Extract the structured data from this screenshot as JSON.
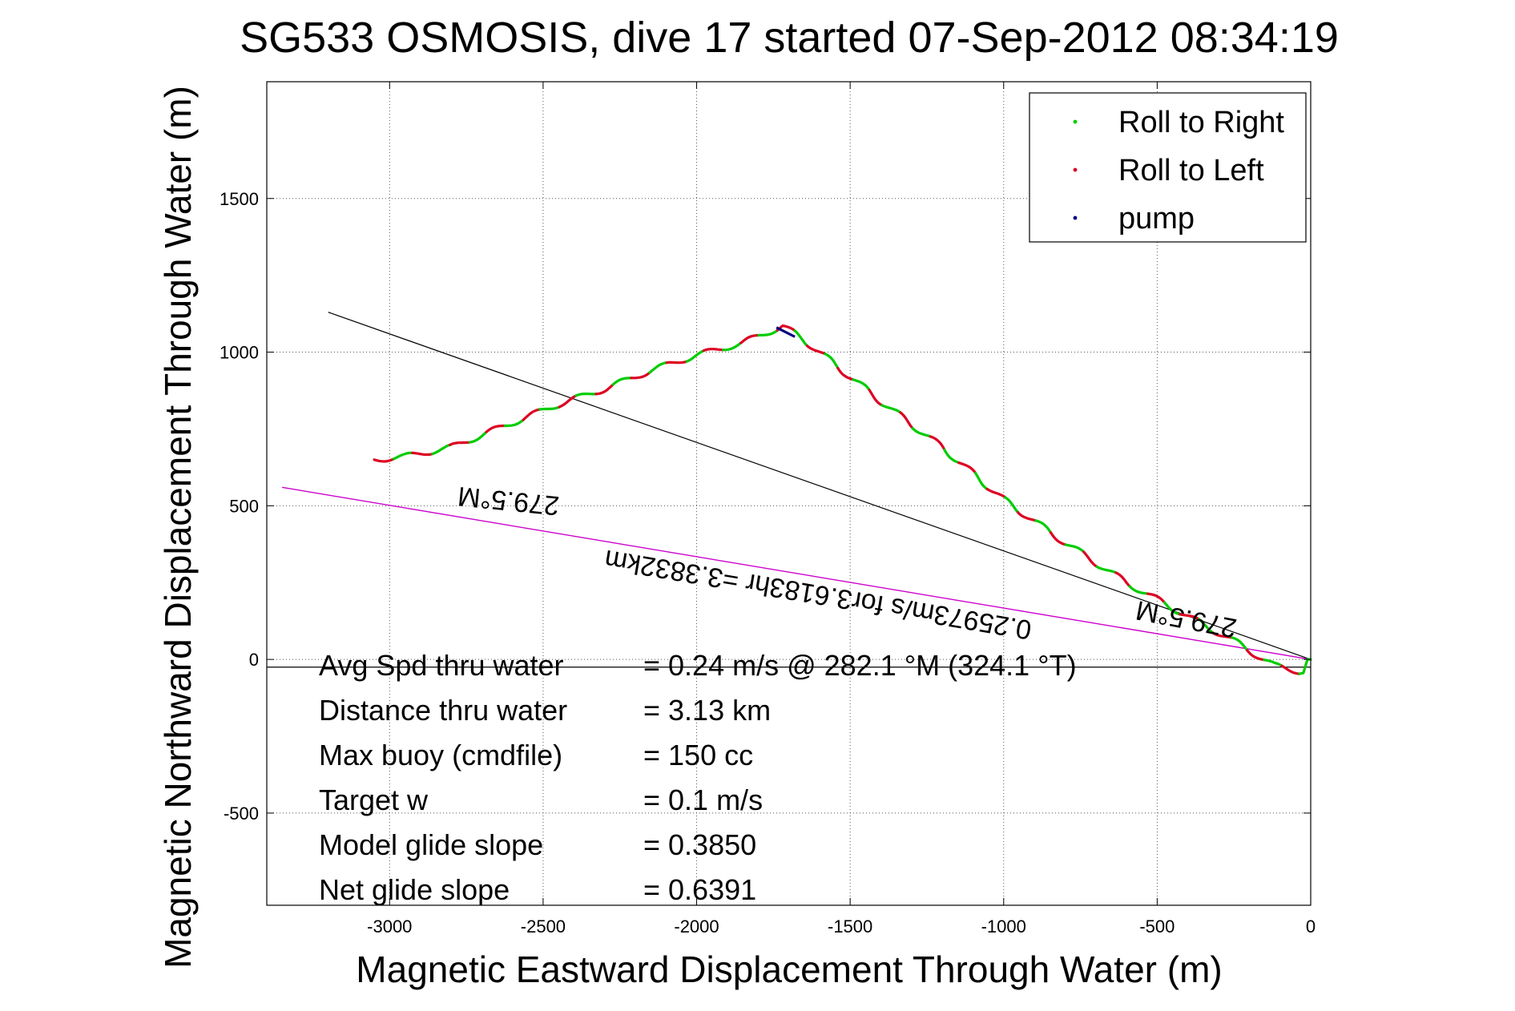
{
  "chart_data": {
    "type": "line",
    "title": "SG533 OSMOSIS, dive 17 started 07-Sep-2012 08:34:19",
    "xlabel": "Magnetic Eastward Displacement Through Water (m)",
    "ylabel": "Magnetic Northward Displacement Through Water (m)",
    "xlim": [
      -3400,
      0
    ],
    "ylim": [
      -800,
      1880
    ],
    "xticks": [
      -3000,
      -2500,
      -2000,
      -1500,
      -1000,
      -500,
      0
    ],
    "xtick_labels": [
      "-3000",
      "-2500",
      "-2000",
      "-1500",
      "-1000",
      "-500",
      "0"
    ],
    "yticks": [
      -500,
      0,
      500,
      1000,
      1500
    ],
    "ytick_labels": [
      "-500",
      "0",
      "500",
      "1000",
      "1500"
    ],
    "grid": true,
    "legend_position": "top-right",
    "legend": [
      {
        "label": "Roll to Right",
        "color": "#00cc00"
      },
      {
        "label": "Roll to Left",
        "color": "#dd0022"
      },
      {
        "label": "pump",
        "color": "#000080"
      }
    ],
    "track": {
      "name": "glider track",
      "x": [
        -3050,
        -2950,
        -2800,
        -2600,
        -2450,
        -2300,
        -2150,
        -2000,
        -1850,
        -1720,
        -1650,
        -1550,
        -1400,
        -1200,
        -1000,
        -800,
        -600,
        -400,
        -250,
        -120,
        -30,
        0
      ],
      "y": [
        650,
        660,
        690,
        770,
        830,
        880,
        940,
        990,
        1030,
        1085,
        1040,
        960,
        840,
        690,
        520,
        380,
        250,
        140,
        60,
        -20,
        -40,
        0
      ]
    },
    "pump_segment": {
      "x": [
        -1740,
        -1680
      ],
      "y": [
        1080,
        1050
      ]
    },
    "heading_line": {
      "x": [
        -3200,
        0
      ],
      "y": [
        1130,
        0
      ],
      "color": "#000000"
    },
    "net_line": {
      "x": [
        -3350,
        0
      ],
      "y": [
        560,
        0
      ],
      "color": "#cc00cc"
    },
    "zero_line": {
      "x": [
        -3400,
        0
      ],
      "y": [
        -25,
        -25
      ],
      "color": "#000000"
    },
    "annotations": [
      {
        "text": "279.5°M",
        "x": -2610,
        "y": 545
      },
      {
        "text": "0.25973m/s for3.6183hr =3.3832km",
        "x": -1600,
        "y": 240
      },
      {
        "text": "279.5°M",
        "x": -400,
        "y": 160
      }
    ],
    "stats": [
      {
        "label": "Avg Spd thru water",
        "value": "=  0.24 m/s @ 282.1 °M (324.1 °T)"
      },
      {
        "label": "Distance thru water",
        "value": "=  3.13 km"
      },
      {
        "label": "Max buoy (cmdfile)",
        "value": "= 150 cc"
      },
      {
        "label": "Target w",
        "value": "= 0.1 m/s"
      },
      {
        "label": "Model glide slope",
        "value": "= 0.3850"
      },
      {
        "label": "Net glide slope",
        "value": "= 0.6391"
      }
    ]
  }
}
